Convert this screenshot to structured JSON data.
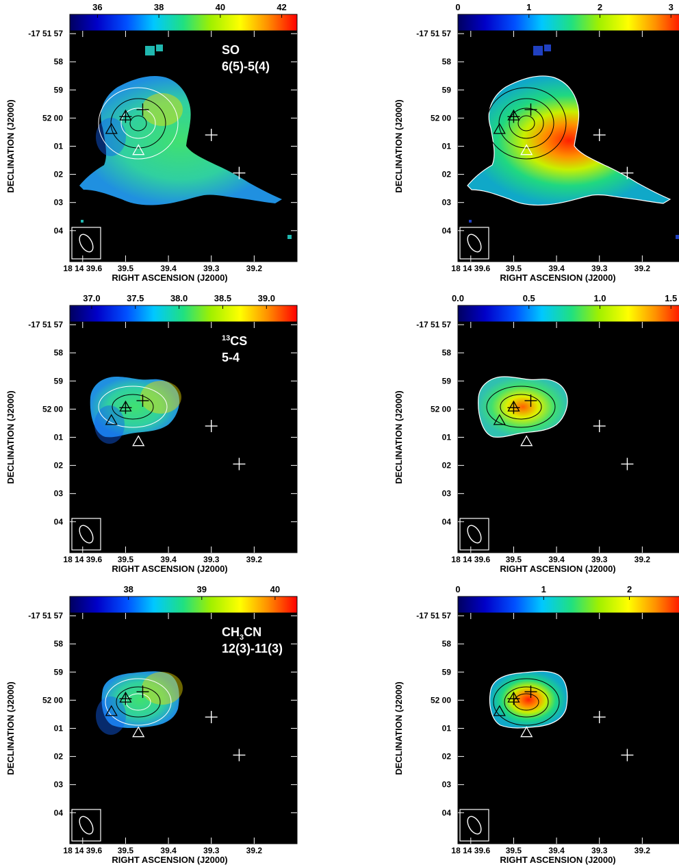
{
  "figure": {
    "xlabel": "RIGHT ASCENSION (J2000)",
    "ylabel": "DECLINATION (J2000)",
    "ra_ticks": [
      "18 14 39.6",
      "39.5",
      "39.4",
      "39.3",
      "39.2"
    ],
    "ra_values": [
      39.6,
      39.5,
      39.4,
      39.3,
      39.2
    ],
    "dec_ticks": [
      "-17 51 57",
      "58",
      "59",
      "52 00",
      "01",
      "02",
      "03",
      "04"
    ],
    "dec_values": [
      57,
      58,
      59,
      60,
      61,
      62,
      63,
      64
    ],
    "panels": [
      {
        "row": 0,
        "col": 0,
        "line_name": "SO",
        "transition": "6(5)-5(4)",
        "colorbar": {
          "ticks": [
            "36",
            "38",
            "40",
            "42"
          ],
          "tick_values": [
            36,
            38,
            40,
            42
          ],
          "min": 35.1,
          "max": 42.5
        },
        "emission": "so"
      },
      {
        "row": 0,
        "col": 1,
        "line_name": "",
        "transition": "",
        "colorbar": {
          "ticks": [
            "0",
            "1",
            "2",
            "3"
          ],
          "tick_values": [
            0,
            1,
            2,
            3
          ],
          "min": 0,
          "max": 3.2
        },
        "emission": "so"
      },
      {
        "row": 1,
        "col": 0,
        "line_name": "13CS",
        "transition": "5-4",
        "colorbar": {
          "ticks": [
            "37.0",
            "37.5",
            "38.0",
            "38.5",
            "39.0"
          ],
          "tick_values": [
            37.0,
            37.5,
            38.0,
            38.5,
            39.0
          ],
          "min": 36.75,
          "max": 39.35
        },
        "emission": "compact"
      },
      {
        "row": 1,
        "col": 1,
        "line_name": "",
        "transition": "",
        "colorbar": {
          "ticks": [
            "0.0",
            "0.5",
            "1.0",
            "1.5"
          ],
          "tick_values": [
            0.0,
            0.5,
            1.0,
            1.5
          ],
          "min": 0,
          "max": 1.6
        },
        "emission": "compact"
      },
      {
        "row": 2,
        "col": 0,
        "line_name": "CH3CN",
        "transition": "12(3)-11(3)",
        "colorbar": {
          "ticks": [
            "38",
            "39",
            "40"
          ],
          "tick_values": [
            38,
            39,
            40
          ],
          "min": 37.2,
          "max": 40.3
        },
        "emission": "ch3cn"
      },
      {
        "row": 2,
        "col": 1,
        "line_name": "",
        "transition": "",
        "colorbar": {
          "ticks": [
            "0",
            "1",
            "2"
          ],
          "tick_values": [
            0,
            1,
            2
          ],
          "min": 0,
          "max": 2.65
        },
        "emission": "ch3cn"
      }
    ],
    "markers": {
      "plus": [
        {
          "ra": 39.5,
          "dec": 59.95
        },
        {
          "ra": 39.46,
          "dec": 59.7
        },
        {
          "ra": 39.3,
          "dec": 60.6
        },
        {
          "ra": 39.235,
          "dec": 61.95
        }
      ],
      "triangle": [
        {
          "ra": 39.5,
          "dec": 59.92
        },
        {
          "ra": 39.533,
          "dec": 60.4
        },
        {
          "ra": 39.47,
          "dec": 61.15
        }
      ]
    }
  }
}
